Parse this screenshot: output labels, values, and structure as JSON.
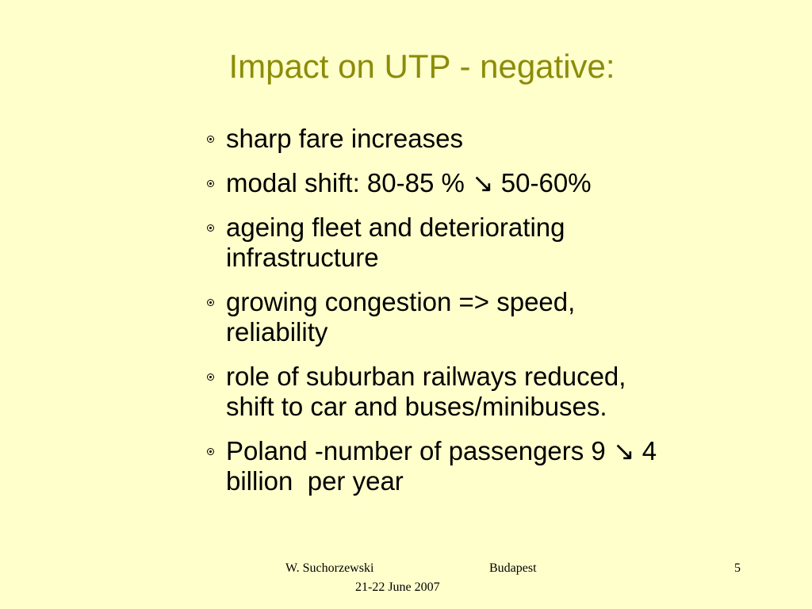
{
  "title": "Impact on UTP - negative:",
  "bullets": [
    {
      "lines": [
        "sharp fare increases"
      ]
    },
    {
      "lines": [
        "modal shift: 80-85 % ↘ 50-60%"
      ]
    },
    {
      "lines": [
        "ageing fleet and deteriorating",
        "infrastructure"
      ]
    },
    {
      "lines": [
        "growing congestion => speed,",
        "reliability"
      ]
    },
    {
      "lines": [
        "role of suburban railways reduced,",
        "shift to car and buses/minibuses."
      ]
    },
    {
      "lines": [
        "Poland -number of passengers 9 ↘ 4",
        "billion  per year"
      ]
    }
  ],
  "footer": {
    "author": "W. Suchorzewski",
    "place": "Budapest",
    "date": "21-22 June 2007",
    "page": "5"
  }
}
